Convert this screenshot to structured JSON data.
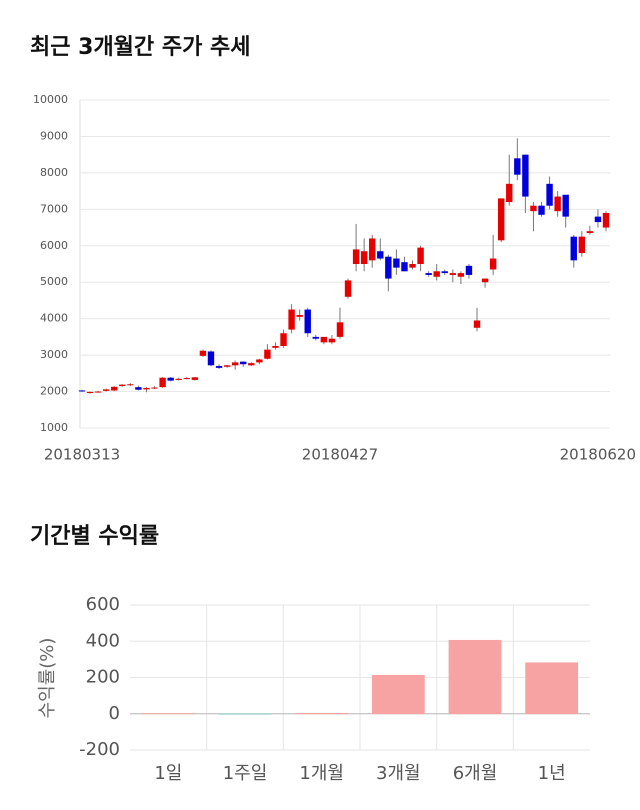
{
  "chart_data": [
    {
      "type": "candlestick",
      "title": "최근 3개월간 주가 추세",
      "categories": [
        "20180313",
        null,
        null,
        null,
        null,
        null,
        null,
        null,
        null,
        null,
        null,
        null,
        null,
        null,
        null,
        null,
        null,
        null,
        null,
        null,
        null,
        null,
        null,
        null,
        null,
        null,
        null,
        null,
        null,
        null,
        null,
        null,
        "20180427",
        null,
        null,
        null,
        null,
        null,
        null,
        null,
        null,
        null,
        null,
        null,
        null,
        null,
        null,
        null,
        null,
        null,
        null,
        null,
        null,
        null,
        null,
        null,
        null,
        null,
        null,
        null,
        null,
        null,
        null,
        null,
        null,
        "20180620"
      ],
      "open": [
        2030,
        1960,
        1990,
        2020,
        2030,
        2150,
        2180,
        2120,
        2060,
        2100,
        2120,
        2380,
        2320,
        2350,
        2320,
        2980,
        3100,
        2700,
        2680,
        2720,
        2820,
        2720,
        2800,
        2900,
        3200,
        3250,
        3700,
        4050,
        4250,
        3500,
        3350,
        3350,
        3500,
        4600,
        5500,
        5500,
        5600,
        5850,
        5700,
        5650,
        5550,
        5400,
        5500,
        5250,
        5150,
        5300,
        5200,
        5150,
        5450,
        3750,
        5000,
        5350,
        6150,
        7200,
        8400,
        8500,
        6950,
        7100,
        7700,
        6950,
        7400,
        6250,
        5800,
        6350,
        6800,
        6500
      ],
      "high": [
        2050,
        2000,
        2020,
        2080,
        2150,
        2200,
        2230,
        2160,
        2120,
        2150,
        2400,
        2400,
        2380,
        2400,
        2400,
        3150,
        3130,
        2750,
        2730,
        2850,
        2830,
        2800,
        2900,
        3300,
        3350,
        3700,
        4400,
        4250,
        4300,
        3550,
        3500,
        3550,
        4300,
        5100,
        6600,
        6200,
        6300,
        6200,
        5750,
        5900,
        5700,
        5600,
        6000,
        5300,
        5500,
        5350,
        5350,
        5300,
        5500,
        4300,
        5100,
        6300,
        7300,
        8500,
        8950,
        8500,
        7200,
        7200,
        7900,
        7500,
        7400,
        6300,
        6400,
        6550,
        7000,
        6950
      ],
      "low": [
        1990,
        1940,
        1970,
        2000,
        2010,
        2130,
        2150,
        2030,
        1980,
        2070,
        2100,
        2280,
        2300,
        2330,
        2300,
        2950,
        2700,
        2620,
        2650,
        2600,
        2680,
        2700,
        2750,
        2880,
        3150,
        3200,
        3600,
        3950,
        3500,
        3400,
        3300,
        3300,
        3450,
        4550,
        5300,
        5300,
        5400,
        5600,
        4750,
        5200,
        5300,
        5350,
        5300,
        5150,
        5050,
        5200,
        5000,
        4950,
        5100,
        3650,
        4850,
        5200,
        6100,
        7100,
        7800,
        6900,
        6400,
        6800,
        7000,
        6800,
        6500,
        5400,
        5700,
        6300,
        6500,
        6400
      ],
      "close": [
        2010,
        1990,
        2000,
        2060,
        2130,
        2190,
        2200,
        2050,
        2100,
        2110,
        2380,
        2300,
        2350,
        2370,
        2390,
        3120,
        2720,
        2650,
        2720,
        2800,
        2750,
        2780,
        2880,
        3150,
        3250,
        3600,
        4250,
        4100,
        3600,
        3450,
        3500,
        3450,
        3900,
        5050,
        5900,
        5850,
        6200,
        5650,
        5100,
        5400,
        5300,
        5500,
        5950,
        5200,
        5300,
        5250,
        5250,
        5250,
        5200,
        3950,
        5100,
        5650,
        7300,
        7700,
        7950,
        7350,
        7100,
        6850,
        7100,
        7350,
        6800,
        5600,
        6250,
        6400,
        6650,
        6900
      ],
      "up_color": "#e60000",
      "down_color": "#0000dd",
      "ylim": [
        1000,
        10000
      ],
      "yticks": [
        1000,
        2000,
        3000,
        4000,
        5000,
        6000,
        7000,
        8000,
        9000,
        10000
      ],
      "grid": true
    },
    {
      "type": "bar",
      "title": "기간별 수익률",
      "ylabel": "수익률(%)",
      "categories": [
        "1일",
        "1주일",
        "1개월",
        "3개월",
        "6개월",
        "1년"
      ],
      "values": [
        1,
        -3,
        2,
        212,
        405,
        281
      ],
      "positive_color": "#f7a3a3",
      "negative_color": "#9fd6d6",
      "ylim": [
        -200,
        600
      ],
      "yticks": [
        -200,
        0,
        200,
        400,
        600
      ],
      "grid": true
    }
  ]
}
